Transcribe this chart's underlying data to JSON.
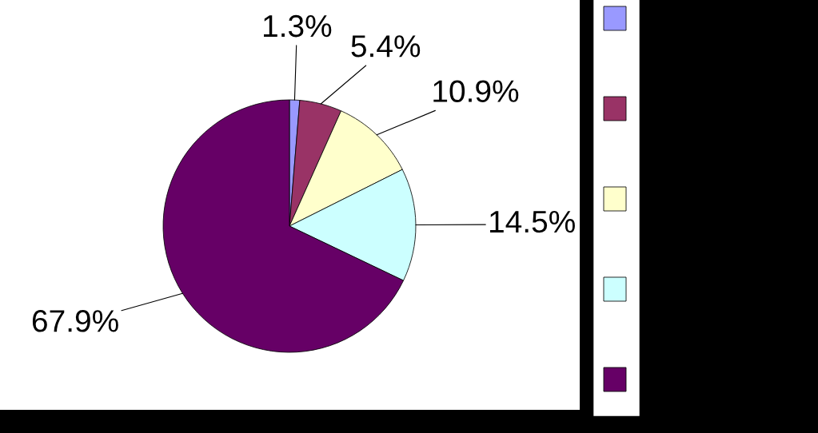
{
  "chart_data": {
    "type": "pie",
    "categories": [
      null,
      null,
      null,
      null,
      null
    ],
    "values": [
      1.3,
      5.4,
      10.9,
      14.5,
      67.9
    ],
    "value_labels": [
      "1.3%",
      "5.4%",
      "10.9%",
      "14.5%",
      "67.9%"
    ],
    "colors": [
      "#9999ff",
      "#993366",
      "#ffffcc",
      "#ccffff",
      "#660066"
    ]
  }
}
